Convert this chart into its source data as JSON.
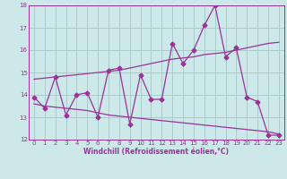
{
  "x": [
    0,
    1,
    2,
    3,
    4,
    5,
    6,
    7,
    8,
    9,
    10,
    11,
    12,
    13,
    14,
    15,
    16,
    17,
    18,
    19,
    20,
    21,
    22,
    23
  ],
  "y_main": [
    13.9,
    13.4,
    14.8,
    13.1,
    14.0,
    14.1,
    13.0,
    15.1,
    15.2,
    12.7,
    14.9,
    13.8,
    13.8,
    16.3,
    15.4,
    16.0,
    17.1,
    18.0,
    15.7,
    16.1,
    13.9,
    13.7,
    12.2,
    12.2
  ],
  "y_trend_upper": [
    14.7,
    14.75,
    14.8,
    14.85,
    14.9,
    14.95,
    15.0,
    15.05,
    15.1,
    15.2,
    15.3,
    15.4,
    15.5,
    15.6,
    15.65,
    15.7,
    15.8,
    15.85,
    15.9,
    16.0,
    16.1,
    16.2,
    16.3,
    16.35
  ],
  "y_trend_lower": [
    13.6,
    13.5,
    13.45,
    13.4,
    13.35,
    13.3,
    13.2,
    13.1,
    13.05,
    13.0,
    12.95,
    12.9,
    12.85,
    12.8,
    12.75,
    12.7,
    12.65,
    12.6,
    12.55,
    12.5,
    12.45,
    12.4,
    12.35,
    12.25
  ],
  "line_color": "#993399",
  "bg_color": "#cce8e8",
  "grid_color": "#aacccc",
  "xlabel": "Windchill (Refroidissement éolien,°C)",
  "ylim": [
    12,
    18
  ],
  "xlim": [
    -0.5,
    23.5
  ],
  "yticks": [
    12,
    13,
    14,
    15,
    16,
    17,
    18
  ],
  "xticks": [
    0,
    1,
    2,
    3,
    4,
    5,
    6,
    7,
    8,
    9,
    10,
    11,
    12,
    13,
    14,
    15,
    16,
    17,
    18,
    19,
    20,
    21,
    22,
    23
  ]
}
